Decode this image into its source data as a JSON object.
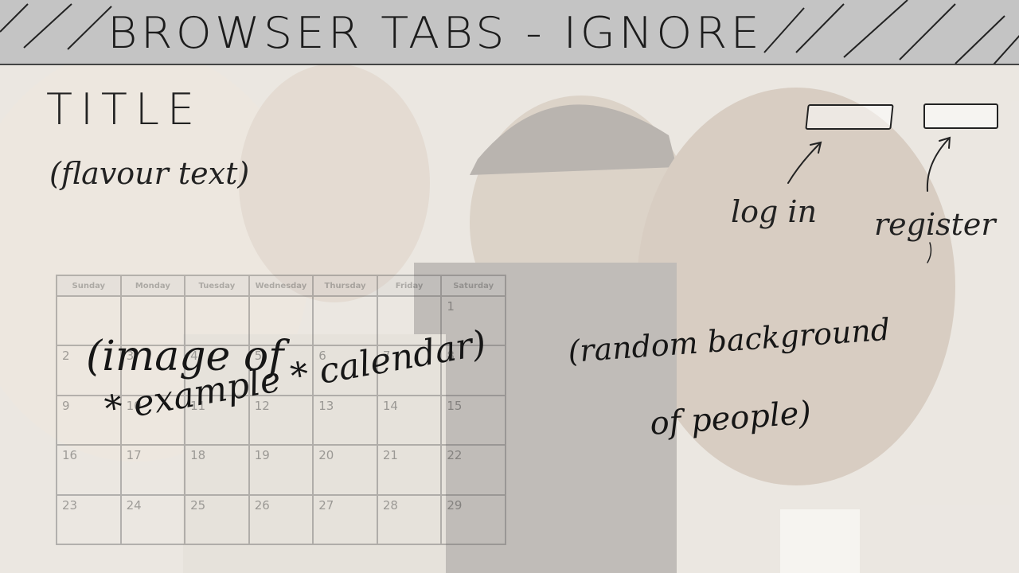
{
  "browser": {
    "tabs_label": "BROWSER TABS - IGNORE"
  },
  "header": {
    "title": "TITLE",
    "flavour": "(flavour text)"
  },
  "auth": {
    "login_button": "",
    "register_button": "",
    "login_callout": "log in",
    "register_callout": "register"
  },
  "calendar": {
    "days": [
      "Sunday",
      "Monday",
      "Tuesday",
      "Wednesday",
      "Thursday",
      "Friday",
      "Saturday"
    ],
    "weeks": [
      [
        "",
        "",
        "",
        "",
        "",
        "",
        "1"
      ],
      [
        "2",
        "3",
        "4",
        "5",
        "6",
        "7",
        "8"
      ],
      [
        "9",
        "10",
        "11",
        "12",
        "13",
        "14",
        "15"
      ],
      [
        "16",
        "17",
        "18",
        "19",
        "20",
        "21",
        "22"
      ],
      [
        "23",
        "24",
        "25",
        "26",
        "27",
        "28",
        "29"
      ]
    ]
  },
  "notes": {
    "calendar_line1": "(image of",
    "calendar_line2": "* example * calendar)",
    "background_line1": "(random background",
    "background_line2": "of people)"
  }
}
